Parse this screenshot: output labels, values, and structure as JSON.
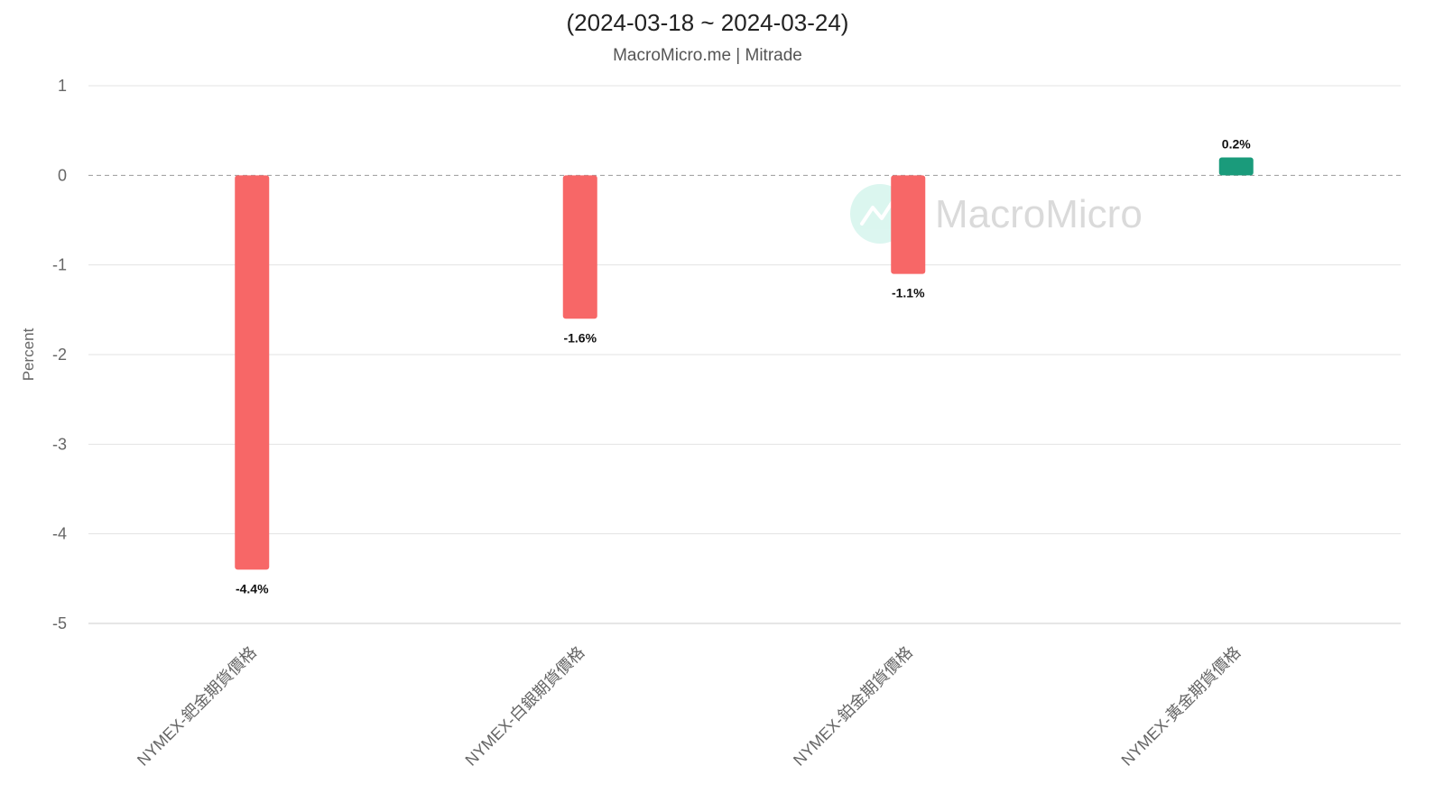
{
  "chart_data": {
    "type": "bar",
    "title": "(2024-03-18 ~ 2024-03-24)",
    "subtitle": "MacroMicro.me | Mitrade",
    "watermark": "MacroMicro",
    "xlabel": "",
    "ylabel": "Percent",
    "ylim": [
      -5,
      1
    ],
    "yticks": [
      1,
      0,
      -1,
      -2,
      -3,
      -4,
      -5
    ],
    "grid": true,
    "legend": "none",
    "categories": [
      "NYMEX-鈀金期貨價格",
      "NYMEX-白銀期貨價格",
      "NYMEX-鉑金期貨價格",
      "NYMEX-黃金期貨價格"
    ],
    "values": [
      -4.4,
      -1.6,
      -1.1,
      0.2
    ],
    "data_labels": [
      "-4.4%",
      "-1.6%",
      "-1.1%",
      "0.2%"
    ],
    "colors": {
      "negative": "#F76767",
      "positive": "#1A9B7B",
      "grid": "#E3E3E3",
      "zero_line": "#999999",
      "axis_text": "#666666",
      "watermark": "#CCCCCC"
    }
  }
}
